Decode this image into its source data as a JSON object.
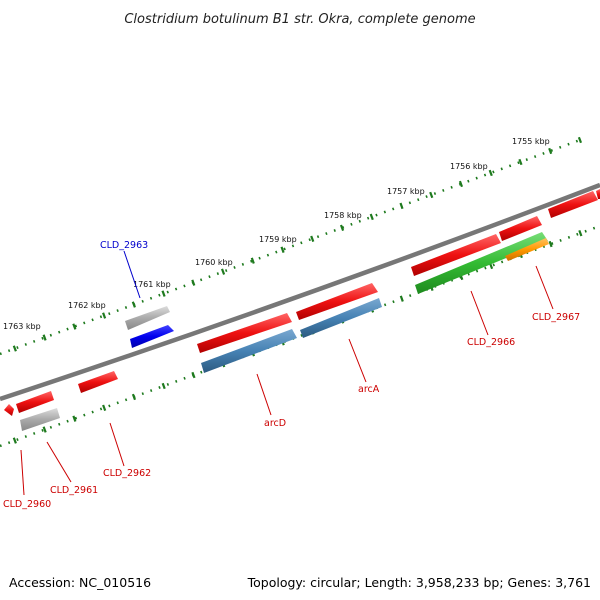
{
  "title": "Clostridium botulinum B1 str. Okra, complete genome",
  "footer": {
    "accession": "Accession: NC_010516",
    "summary": "Topology: circular; Length: 3,958,233 bp; Genes: 3,761"
  },
  "colors": {
    "backbone": "#777777",
    "tick": "#1e7a1e",
    "gene_red": "#ee1111",
    "gene_gray": "#aaaaaa",
    "gene_blue": "#0000ee",
    "gene_steel": "#4682b4",
    "gene_green": "#33bb33",
    "gene_orange": "#ff9900",
    "label_red": "#cc0000",
    "label_blue": "#0000cc"
  },
  "scale_labels": [
    "1755 kbp",
    "1756 kbp",
    "1757 kbp",
    "1758 kbp",
    "1759 kbp",
    "1760 kbp",
    "1761 kbp",
    "1762 kbp",
    "1763 kbp"
  ],
  "gene_labels": [
    {
      "text": "CLD_2963",
      "color": "blue"
    },
    {
      "text": "CLD_2967",
      "color": "red"
    },
    {
      "text": "CLD_2966",
      "color": "red"
    },
    {
      "text": "arcA",
      "color": "red"
    },
    {
      "text": "arcD",
      "color": "red"
    },
    {
      "text": "CLD_2962",
      "color": "red"
    },
    {
      "text": "CLD_2961",
      "color": "red"
    },
    {
      "text": "CLD_2960",
      "color": "red"
    }
  ]
}
